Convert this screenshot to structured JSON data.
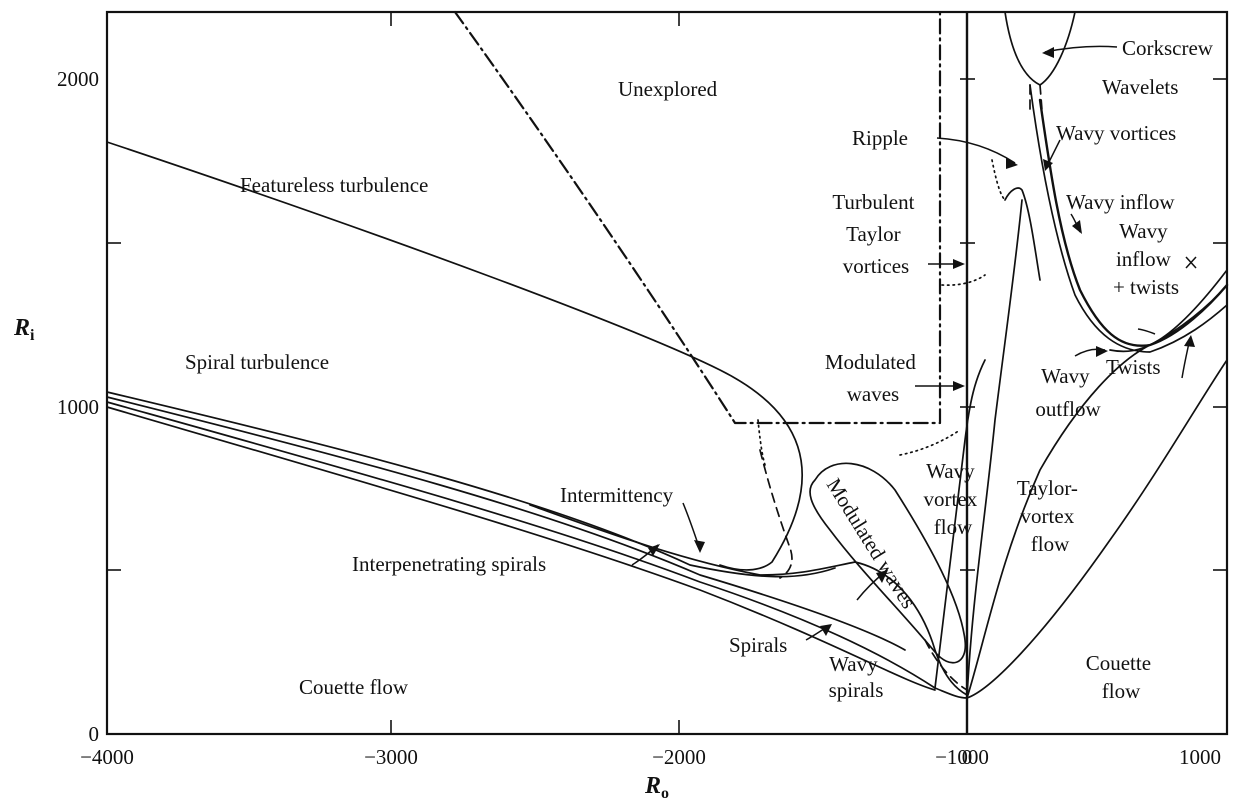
{
  "axes": {
    "x_title": "R",
    "x_title_sub": "o",
    "y_title": "R",
    "y_title_sub": "i",
    "x_ticks": [
      "−4000",
      "−3000",
      "−2000",
      "−1000",
      "0",
      "1000"
    ],
    "y_ticks": [
      "0",
      "1000",
      "2000"
    ]
  },
  "labels": {
    "unexplored": "Unexplored",
    "featureless_turbulence": "Featureless turbulence",
    "spiral_turbulence": "Spiral turbulence",
    "intermittency": "Intermittency",
    "interpenetrating_spirals": "Interpenetrating spirals",
    "spirals": "Spirals",
    "wavy_spirals": [
      "Wavy",
      "spirals"
    ],
    "couette_flow_left": "Couette flow",
    "couette_flow_right": [
      "Couette",
      "flow"
    ],
    "modulated_waves_rotated": "Modulated waves",
    "modulated_waves": [
      "Modulated",
      "waves"
    ],
    "turbulent_taylor_vortices": [
      "Turbulent",
      "Taylor",
      "vortices"
    ],
    "ripple": "Ripple",
    "corkscrew": "Corkscrew",
    "wavelets": "Wavelets",
    "wavy_vortices": "Wavy vortices",
    "wavy_inflow": "Wavy inflow",
    "wavy_inflow_twists": [
      "Wavy",
      "inflow",
      "+ twists"
    ],
    "wavy_outflow": [
      "Wavy",
      "outflow"
    ],
    "twists": "Twists",
    "wavy_vortex_flow": [
      "Wavy",
      "vortex",
      "flow"
    ],
    "taylor_vortex_flow": [
      "Taylor-",
      "vortex",
      "flow"
    ]
  },
  "colors": {
    "ink": "#111111",
    "paper": "#ffffff"
  }
}
